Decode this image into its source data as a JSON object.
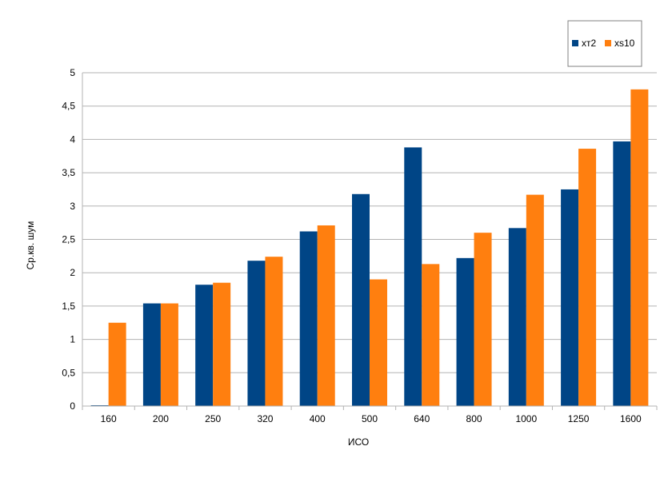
{
  "chart_data": {
    "type": "bar",
    "categories": [
      "160",
      "200",
      "250",
      "320",
      "400",
      "500",
      "640",
      "800",
      "1000",
      "1250",
      "1600"
    ],
    "series": [
      {
        "name": "xт2",
        "color": "#004586",
        "values": [
          0.01,
          1.54,
          1.82,
          2.18,
          2.62,
          3.18,
          3.88,
          2.22,
          2.67,
          3.25,
          3.97
        ]
      },
      {
        "name": "xs10",
        "color": "#ff7f0f",
        "values": [
          1.25,
          1.54,
          1.85,
          2.24,
          2.71,
          1.9,
          2.13,
          2.6,
          3.17,
          3.86,
          4.75
        ]
      }
    ],
    "xlabel": "ИСО",
    "ylabel": "Ср.кв. шум",
    "ylim": [
      0,
      5
    ],
    "yticks": [
      "0",
      "0,5",
      "1",
      "1,5",
      "2",
      "2,5",
      "3",
      "3,5",
      "4",
      "4,5",
      "5"
    ],
    "grid": true,
    "legend_position": "top-right"
  }
}
